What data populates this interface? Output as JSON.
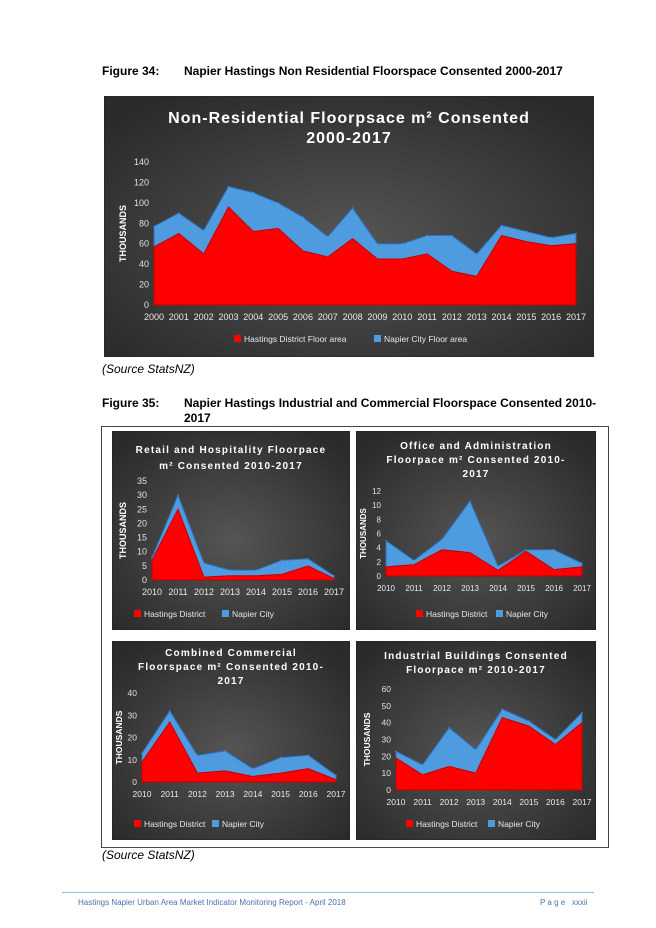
{
  "figure34": {
    "label": "Figure 34:",
    "caption": "Napier Hastings Non Residential Floorspace Consented 2000-2017"
  },
  "figure35": {
    "label": "Figure 35:",
    "caption_line1": "Napier Hastings Industrial and Commercial Floorspace Consented 2010-",
    "caption_line2": "2017"
  },
  "source1": "(Source StatsNZ)",
  "source2": "(Source StatsNZ)",
  "footer": {
    "left": "Hastings Napier Urban Area Market Indicator Monitoring Report - April 2018",
    "right": "P a g e   xxxii"
  },
  "colors": {
    "hastings": "#ff0000",
    "napier": "#4f9be0",
    "background": "#3a3a3a"
  },
  "chart_data": [
    {
      "type": "area",
      "stacked": true,
      "title_lines": [
        "Non-Residential Floorpsace m² Consented",
        "2000-2017"
      ],
      "ylabel": "THOUSANDS",
      "ylim": [
        0,
        140
      ],
      "yticks": [
        0,
        20,
        40,
        60,
        80,
        100,
        120,
        140
      ],
      "x": [
        "2000",
        "2001",
        "2002",
        "2003",
        "2004",
        "2005",
        "2006",
        "2007",
        "2008",
        "2009",
        "2010",
        "2011",
        "2012",
        "2013",
        "2014",
        "2015",
        "2016",
        "2017"
      ],
      "series": [
        {
          "name": "Hastings District Floor area",
          "values": [
            57,
            70,
            50,
            96,
            72,
            75,
            53,
            47,
            65,
            45,
            45,
            50,
            33,
            28,
            68,
            62,
            58,
            60
          ]
        },
        {
          "name": "Napier City Floor area",
          "values": [
            20,
            20,
            23,
            20,
            38,
            25,
            33,
            20,
            30,
            15,
            15,
            18,
            35,
            22,
            10,
            10,
            8,
            10
          ]
        }
      ],
      "legend": "bottom"
    },
    {
      "type": "area",
      "stacked": true,
      "title_lines": [
        "Retail and Hospitality Floorpace",
        "m² Consented 2010-2017"
      ],
      "ylabel": "THOUSANDS",
      "ylim": [
        0,
        35
      ],
      "yticks": [
        0,
        5,
        10,
        15,
        20,
        25,
        30,
        35
      ],
      "x": [
        "2010",
        "2011",
        "2012",
        "2013",
        "2014",
        "2015",
        "2016",
        "2017"
      ],
      "series": [
        {
          "name": "Hastings District",
          "values": [
            7,
            25,
            1,
            1.5,
            1.5,
            2,
            5,
            0.5
          ]
        },
        {
          "name": "Napier City",
          "values": [
            1,
            5,
            5,
            2,
            2,
            5,
            2.5,
            1
          ]
        }
      ],
      "legend": "bottom"
    },
    {
      "type": "area",
      "stacked": true,
      "title_lines": [
        "Office and Administration",
        "Floorpace m² Consented 2010-",
        "2017"
      ],
      "ylabel": "THOUSANDS",
      "ylim": [
        0,
        12
      ],
      "yticks": [
        0,
        2,
        4,
        6,
        8,
        10,
        12
      ],
      "x": [
        "2010",
        "2011",
        "2012",
        "2013",
        "2014",
        "2015",
        "2016",
        "2017"
      ],
      "series": [
        {
          "name": "Hastings District",
          "values": [
            1.3,
            1.6,
            3.7,
            3.3,
            0.8,
            3.5,
            0.9,
            1.3
          ]
        },
        {
          "name": "Napier City",
          "values": [
            3.7,
            0.6,
            1.5,
            7.3,
            0.6,
            0.2,
            2.8,
            0.5
          ]
        }
      ],
      "legend": "bottom"
    },
    {
      "type": "area",
      "stacked": true,
      "title_lines": [
        "Combined Commercial",
        "Floorspace m² Consented 2010-",
        "2017"
      ],
      "ylabel": "THOUSANDS",
      "ylim": [
        0,
        40
      ],
      "yticks": [
        0,
        10,
        20,
        30,
        40
      ],
      "x": [
        "2010",
        "2011",
        "2012",
        "2013",
        "2014",
        "2015",
        "2016",
        "2017"
      ],
      "series": [
        {
          "name": "Hastings District",
          "values": [
            9,
            27,
            4,
            5,
            2.5,
            4,
            6,
            1
          ]
        },
        {
          "name": "Napier City",
          "values": [
            4,
            5,
            8,
            9,
            3.5,
            7,
            6,
            2
          ]
        }
      ],
      "legend": "bottom"
    },
    {
      "type": "area",
      "stacked": true,
      "title_lines": [
        "Industrial Buildings Consented",
        "Floorpace m² 2010-2017"
      ],
      "ylabel": "THOUSANDS",
      "ylim": [
        0,
        60
      ],
      "yticks": [
        0,
        10,
        20,
        30,
        40,
        50,
        60
      ],
      "x": [
        "2010",
        "2011",
        "2012",
        "2013",
        "2014",
        "2015",
        "2016",
        "2017"
      ],
      "series": [
        {
          "name": "Hastings District",
          "values": [
            19,
            9,
            14,
            10,
            43,
            38,
            27,
            40
          ]
        },
        {
          "name": "Napier City",
          "values": [
            4,
            6,
            23,
            14,
            5,
            3,
            3,
            6
          ]
        }
      ],
      "legend": "bottom"
    }
  ]
}
